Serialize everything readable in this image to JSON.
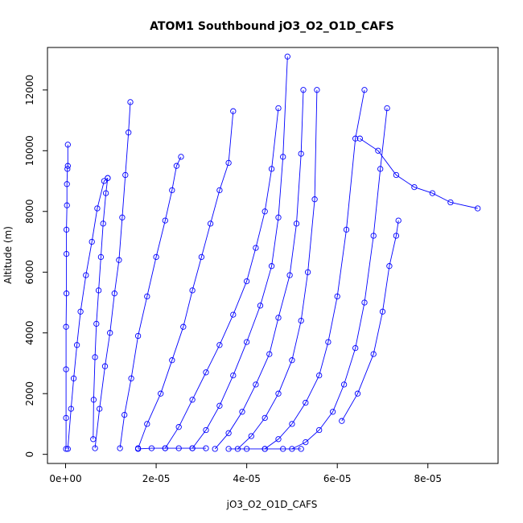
{
  "chart_data": {
    "type": "line",
    "title": "ATOM1 Southbound jO3_O2_O1D_CAFS",
    "xlabel": "jO3_O2_O1D_CAFS",
    "ylabel": "Altitude (m)",
    "xlim": [
      -4e-06,
      9.55e-05
    ],
    "ylim": [
      -300,
      13400
    ],
    "x_ticks": [
      0,
      2e-05,
      4e-05,
      6e-05,
      8e-05
    ],
    "x_tick_labels": [
      "0e+00",
      "2e-05",
      "4e-05",
      "6e-05",
      "8e-05"
    ],
    "y_ticks": [
      0,
      2000,
      4000,
      6000,
      8000,
      10000,
      12000
    ],
    "y_tick_labels": [
      "0",
      "2000",
      "4000",
      "6000",
      "8000",
      "10000",
      "12000"
    ],
    "grid": false,
    "marker": "open-circle",
    "series_color": "#0000ff",
    "series": [
      {
        "x": [
          1e-07,
          1e-07,
          1e-07,
          1e-07,
          2e-07,
          2e-07,
          2e-07,
          3e-07,
          3e-07,
          4e-07,
          5e-07,
          5e-07
        ],
        "y": [
          180,
          1200,
          2800,
          4200,
          5300,
          6600,
          7400,
          8200,
          8900,
          9400,
          9500,
          10200
        ]
      },
      {
        "x": [
          5e-07,
          1.2e-06,
          1.8e-06,
          2.5e-06,
          3.3e-06,
          4.5e-06,
          5.8e-06,
          7e-06,
          8.5e-06,
          9.3e-06
        ],
        "y": [
          180,
          1500,
          2500,
          3600,
          4700,
          5900,
          7000,
          8100,
          9000,
          9100
        ]
      },
      {
        "x": [
          9.3e-06,
          8.9e-06,
          8.3e-06,
          7.8e-06,
          7.3e-06,
          6.8e-06,
          6.5e-06,
          6.2e-06,
          6.1e-06
        ],
        "y": [
          9100,
          8600,
          7600,
          6500,
          5400,
          4300,
          3200,
          1800,
          500
        ]
      },
      {
        "x": [
          6.5e-06,
          7.5e-06,
          8.7e-06,
          9.8e-06,
          1.08e-05,
          1.18e-05,
          1.25e-05,
          1.32e-05,
          1.39e-05,
          1.43e-05
        ],
        "y": [
          200,
          1500,
          2900,
          4000,
          5300,
          6400,
          7800,
          9200,
          10600,
          11600
        ]
      },
      {
        "x": [
          1.2e-05,
          1.3e-05,
          1.45e-05,
          1.6e-05,
          1.8e-05,
          2e-05,
          2.2e-05,
          2.35e-05,
          2.45e-05,
          2.55e-05
        ],
        "y": [
          200,
          1300,
          2500,
          3900,
          5200,
          6500,
          7700,
          8700,
          9500,
          9800
        ]
      },
      {
        "x": [
          1.6e-05,
          1.8e-05,
          2.1e-05,
          2.35e-05,
          2.6e-05,
          2.8e-05,
          3e-05,
          3.2e-05,
          3.4e-05,
          3.6e-05,
          3.7e-05
        ],
        "y": [
          200,
          1000,
          2000,
          3100,
          4200,
          5400,
          6500,
          7600,
          8700,
          9600,
          11300
        ]
      },
      {
        "x": [
          2.2e-05,
          2.5e-05,
          2.8e-05,
          3.1e-05,
          3.4e-05,
          3.7e-05,
          4e-05,
          4.2e-05,
          4.4e-05,
          4.55e-05,
          4.7e-05
        ],
        "y": [
          200,
          900,
          1800,
          2700,
          3600,
          4600,
          5700,
          6800,
          8000,
          9400,
          11400
        ]
      },
      {
        "x": [
          2.8e-05,
          3.1e-05,
          3.4e-05,
          3.7e-05,
          4e-05,
          4.3e-05,
          4.55e-05,
          4.7e-05,
          4.8e-05,
          4.9e-05
        ],
        "y": [
          200,
          800,
          1600,
          2600,
          3700,
          4900,
          6200,
          7800,
          9800,
          13100
        ]
      },
      {
        "x": [
          3.3e-05,
          3.6e-05,
          3.9e-05,
          4.2e-05,
          4.5e-05,
          4.7e-05,
          4.95e-05,
          5.1e-05,
          5.2e-05,
          5.25e-05
        ],
        "y": [
          180,
          700,
          1400,
          2300,
          3300,
          4500,
          5900,
          7600,
          9900,
          12000
        ]
      },
      {
        "x": [
          3.8e-05,
          4.1e-05,
          4.4e-05,
          4.7e-05,
          5e-05,
          5.2e-05,
          5.35e-05,
          5.5e-05,
          5.55e-05
        ],
        "y": [
          180,
          600,
          1200,
          2000,
          3100,
          4400,
          6000,
          8400,
          12000
        ]
      },
      {
        "x": [
          4.4e-05,
          4.7e-05,
          5e-05,
          5.3e-05,
          5.6e-05,
          5.8e-05,
          6e-05,
          6.2e-05,
          6.4e-05,
          6.6e-05
        ],
        "y": [
          180,
          500,
          1000,
          1700,
          2600,
          3700,
          5200,
          7400,
          10400,
          12000
        ]
      },
      {
        "x": [
          5e-05,
          5.3e-05,
          5.6e-05,
          5.9e-05,
          6.15e-05,
          6.4e-05,
          6.6e-05,
          6.8e-05,
          6.95e-05,
          7.1e-05
        ],
        "y": [
          180,
          400,
          800,
          1400,
          2300,
          3500,
          5000,
          7200,
          9400,
          11400
        ]
      },
      {
        "x": [
          6.1e-05,
          6.45e-05,
          6.8e-05,
          7e-05,
          7.15e-05,
          7.3e-05,
          7.35e-05
        ],
        "y": [
          1100,
          2000,
          3300,
          4700,
          6200,
          7200,
          7700
        ]
      },
      {
        "x": [
          6.5e-05,
          6.9e-05,
          7.3e-05,
          7.7e-05,
          8.1e-05,
          8.5e-05,
          9.1e-05
        ],
        "y": [
          10400,
          10000,
          9200,
          8800,
          8600,
          8300,
          8100
        ]
      },
      {
        "x": [
          3.6e-05,
          4e-05,
          4.4e-05,
          4.8e-05,
          5.2e-05
        ],
        "y": [
          180,
          180,
          180,
          180,
          180
        ]
      },
      {
        "x": [
          1.6e-05,
          1.9e-05,
          2.2e-05,
          2.5e-05,
          2.8e-05,
          3.1e-05
        ],
        "y": [
          180,
          200,
          200,
          200,
          200,
          200
        ]
      }
    ]
  }
}
